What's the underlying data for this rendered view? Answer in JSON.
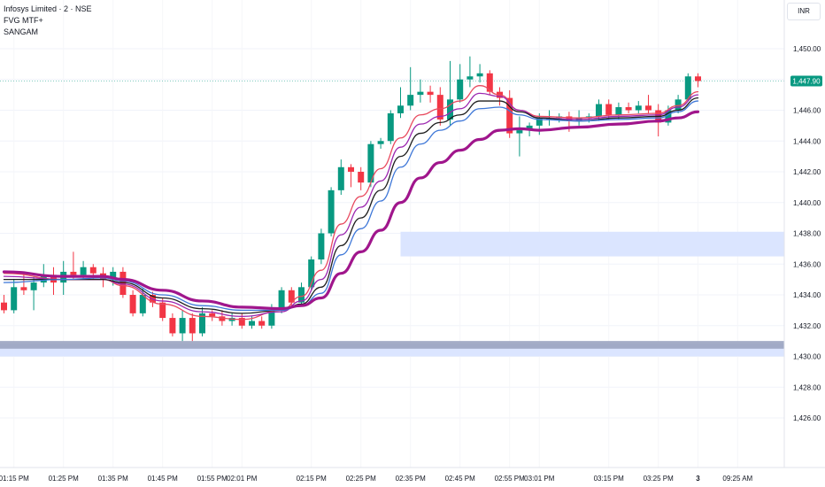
{
  "header": {
    "symbol": "Infosys Limited · 2 · NSE",
    "indicator_1": "FVG MTF+",
    "indicator_2": "SANGAM",
    "currency": "INR"
  },
  "colors": {
    "up": "#089981",
    "down": "#f23645",
    "ema_fast": "#e84a5f",
    "ema_2": "#9c27b0",
    "ema_3": "#1e1e1e",
    "ema_4": "#3f78d8",
    "ema_slow": "#a0168c",
    "fvg_zone": "#dbe5ff",
    "fvg_band": "#9aa3c0",
    "last_price_bg": "#089981"
  },
  "chart_data": {
    "type": "candlestick",
    "y_range": [
      1424.0,
      1452.0
    ],
    "y_ticks": [
      "1,450.00",
      "1,448.00",
      "1,446.00",
      "1,444.00",
      "1,442.00",
      "1,440.00",
      "1,438.00",
      "1,436.00",
      "1,434.00",
      "1,432.00",
      "1,430.00",
      "1,428.00",
      "1,426.00"
    ],
    "x_ticks": [
      {
        "label": "01:15 PM",
        "i": 1
      },
      {
        "label": "01:25 PM",
        "i": 6
      },
      {
        "label": "01:35 PM",
        "i": 11
      },
      {
        "label": "01:45 PM",
        "i": 16
      },
      {
        "label": "01:55 PM",
        "i": 21
      },
      {
        "label": "02:01 PM",
        "i": 24
      },
      {
        "label": "02:15 PM",
        "i": 31
      },
      {
        "label": "02:25 PM",
        "i": 36
      },
      {
        "label": "02:35 PM",
        "i": 41
      },
      {
        "label": "02:45 PM",
        "i": 46
      },
      {
        "label": "02:55 PM",
        "i": 51
      },
      {
        "label": "03:01 PM",
        "i": 54
      },
      {
        "label": "03:15 PM",
        "i": 61
      },
      {
        "label": "03:25 PM",
        "i": 66
      },
      {
        "label": "3",
        "i": 70
      },
      {
        "label": "09:25 AM",
        "i": 74
      }
    ],
    "last_price": "1,447.90",
    "last_price_value": 1447.9,
    "candles": [
      [
        1433.5,
        1433.0,
        1434.0,
        1432.8
      ],
      [
        1433.0,
        1434.5,
        1435.0,
        1432.8
      ],
      [
        1434.5,
        1434.3,
        1435.5,
        1434.0
      ],
      [
        1434.3,
        1434.8,
        1435.2,
        1433.0
      ],
      [
        1434.8,
        1435.3,
        1436.0,
        1434.5
      ],
      [
        1435.3,
        1434.8,
        1435.8,
        1434.0
      ],
      [
        1434.8,
        1435.5,
        1436.2,
        1434.0
      ],
      [
        1435.5,
        1435.3,
        1436.8,
        1435.0
      ],
      [
        1435.3,
        1435.8,
        1436.2,
        1435.0
      ],
      [
        1435.8,
        1435.4,
        1436.0,
        1435.0
      ],
      [
        1435.4,
        1435.0,
        1435.8,
        1434.5
      ],
      [
        1435.0,
        1435.5,
        1435.8,
        1434.6
      ],
      [
        1435.5,
        1434.0,
        1435.8,
        1433.8
      ],
      [
        1434.0,
        1432.8,
        1434.3,
        1432.6
      ],
      [
        1432.8,
        1434.0,
        1434.4,
        1432.6
      ],
      [
        1434.0,
        1433.5,
        1434.2,
        1433.2
      ],
      [
        1433.5,
        1432.5,
        1433.8,
        1432.3
      ],
      [
        1432.5,
        1431.5,
        1432.8,
        1431.3
      ],
      [
        1431.5,
        1432.5,
        1433.0,
        1431.0
      ],
      [
        1432.5,
        1431.5,
        1432.8,
        1431.0
      ],
      [
        1431.5,
        1432.8,
        1433.2,
        1431.3
      ],
      [
        1432.8,
        1432.6,
        1433.0,
        1432.3
      ],
      [
        1432.6,
        1432.3,
        1433.0,
        1432.0
      ],
      [
        1432.3,
        1432.5,
        1432.8,
        1432.0
      ],
      [
        1432.5,
        1432.0,
        1432.8,
        1431.8
      ],
      [
        1432.0,
        1432.3,
        1432.6,
        1431.8
      ],
      [
        1432.3,
        1432.0,
        1432.6,
        1431.8
      ],
      [
        1432.0,
        1433.0,
        1433.4,
        1431.8
      ],
      [
        1433.0,
        1434.3,
        1434.5,
        1432.8
      ],
      [
        1434.3,
        1433.5,
        1434.5,
        1433.2
      ],
      [
        1433.5,
        1434.5,
        1434.8,
        1433.3
      ],
      [
        1434.5,
        1436.3,
        1436.5,
        1434.3
      ],
      [
        1436.3,
        1438.0,
        1438.3,
        1436.0
      ],
      [
        1438.0,
        1440.8,
        1441.0,
        1437.8
      ],
      [
        1440.8,
        1442.3,
        1442.8,
        1440.5
      ],
      [
        1442.3,
        1442.0,
        1442.5,
        1441.0
      ],
      [
        1442.0,
        1441.3,
        1442.3,
        1440.8
      ],
      [
        1441.3,
        1443.8,
        1444.0,
        1441.0
      ],
      [
        1443.8,
        1444.0,
        1444.2,
        1443.5
      ],
      [
        1444.0,
        1445.8,
        1446.0,
        1443.8
      ],
      [
        1445.8,
        1446.3,
        1447.5,
        1445.5
      ],
      [
        1446.3,
        1447.0,
        1448.8,
        1446.0
      ],
      [
        1447.0,
        1447.2,
        1448.0,
        1446.5
      ],
      [
        1447.2,
        1447.0,
        1447.6,
        1446.5
      ],
      [
        1447.0,
        1445.4,
        1447.5,
        1445.0
      ],
      [
        1445.4,
        1446.7,
        1449.2,
        1445.0
      ],
      [
        1446.7,
        1448.0,
        1449.0,
        1446.5
      ],
      [
        1448.0,
        1448.2,
        1449.5,
        1447.5
      ],
      [
        1448.2,
        1448.4,
        1449.0,
        1447.8
      ],
      [
        1448.4,
        1447.2,
        1448.6,
        1447.0
      ],
      [
        1447.2,
        1446.8,
        1447.5,
        1446.3
      ],
      [
        1446.8,
        1444.5,
        1447.3,
        1444.2
      ],
      [
        1444.5,
        1444.7,
        1445.6,
        1443.0
      ],
      [
        1444.7,
        1445.0,
        1445.2,
        1444.3
      ],
      [
        1445.0,
        1445.5,
        1445.8,
        1444.4
      ],
      [
        1445.5,
        1445.5,
        1446.0,
        1445.0
      ],
      [
        1445.5,
        1445.6,
        1445.8,
        1445.2
      ],
      [
        1445.6,
        1445.3,
        1445.9,
        1444.6
      ],
      [
        1445.3,
        1445.5,
        1446.0,
        1445.0
      ],
      [
        1445.5,
        1445.6,
        1445.8,
        1445.2
      ],
      [
        1445.6,
        1446.4,
        1446.7,
        1445.3
      ],
      [
        1446.4,
        1445.7,
        1446.7,
        1445.4
      ],
      [
        1445.7,
        1446.2,
        1446.5,
        1445.4
      ],
      [
        1446.2,
        1446.0,
        1446.5,
        1445.8
      ],
      [
        1446.0,
        1446.3,
        1446.6,
        1445.8
      ],
      [
        1446.3,
        1446.0,
        1447.0,
        1445.8
      ],
      [
        1446.0,
        1445.2,
        1446.4,
        1444.3
      ],
      [
        1445.2,
        1446.0,
        1446.3,
        1445.0
      ],
      [
        1446.0,
        1446.7,
        1447.0,
        1445.8
      ],
      [
        1446.7,
        1448.2,
        1448.4,
        1446.6
      ],
      [
        1448.2,
        1447.9,
        1448.4,
        1447.5
      ]
    ],
    "ema_series": [
      {
        "key": "ema_fast",
        "width": 1.3,
        "values": [
          [
            0,
            1435.4
          ],
          [
            6,
            1435.0
          ],
          [
            10,
            1435.0
          ],
          [
            12,
            1434.6
          ],
          [
            16,
            1433.4
          ],
          [
            20,
            1432.6
          ],
          [
            24,
            1432.4
          ],
          [
            28,
            1433.0
          ],
          [
            30,
            1433.9
          ],
          [
            32,
            1435.6
          ],
          [
            34,
            1438.6
          ],
          [
            36,
            1440.4
          ],
          [
            38,
            1442.2
          ],
          [
            40,
            1444.2
          ],
          [
            42,
            1445.7
          ],
          [
            44,
            1446.1
          ],
          [
            46,
            1446.6
          ],
          [
            48,
            1447.6
          ],
          [
            50,
            1447.0
          ],
          [
            52,
            1446.0
          ],
          [
            54,
            1445.6
          ],
          [
            58,
            1445.5
          ],
          [
            62,
            1445.7
          ],
          [
            66,
            1445.8
          ],
          [
            68,
            1446.3
          ],
          [
            70,
            1447.2
          ]
        ]
      },
      {
        "key": "ema_2",
        "width": 1.3,
        "values": [
          [
            0,
            1435.2
          ],
          [
            6,
            1435.0
          ],
          [
            10,
            1435.0
          ],
          [
            12,
            1434.7
          ],
          [
            16,
            1433.6
          ],
          [
            20,
            1432.9
          ],
          [
            24,
            1432.6
          ],
          [
            28,
            1432.9
          ],
          [
            30,
            1433.6
          ],
          [
            32,
            1435.0
          ],
          [
            34,
            1437.9
          ],
          [
            36,
            1439.7
          ],
          [
            38,
            1441.4
          ],
          [
            40,
            1443.6
          ],
          [
            42,
            1445.1
          ],
          [
            44,
            1445.6
          ],
          [
            46,
            1446.1
          ],
          [
            48,
            1447.1
          ],
          [
            50,
            1446.9
          ],
          [
            52,
            1446.0
          ],
          [
            54,
            1445.5
          ],
          [
            58,
            1445.4
          ],
          [
            62,
            1445.6
          ],
          [
            66,
            1445.7
          ],
          [
            68,
            1446.2
          ],
          [
            70,
            1447.0
          ]
        ]
      },
      {
        "key": "ema_3",
        "width": 1.3,
        "values": [
          [
            0,
            1435.0
          ],
          [
            6,
            1435.0
          ],
          [
            10,
            1435.0
          ],
          [
            12,
            1434.8
          ],
          [
            16,
            1433.8
          ],
          [
            20,
            1433.1
          ],
          [
            24,
            1432.8
          ],
          [
            28,
            1433.0
          ],
          [
            30,
            1433.4
          ],
          [
            32,
            1434.5
          ],
          [
            34,
            1437.2
          ],
          [
            36,
            1439.0
          ],
          [
            38,
            1440.8
          ],
          [
            40,
            1443.0
          ],
          [
            42,
            1444.5
          ],
          [
            44,
            1445.2
          ],
          [
            46,
            1445.7
          ],
          [
            48,
            1446.6
          ],
          [
            50,
            1446.6
          ],
          [
            52,
            1445.9
          ],
          [
            54,
            1445.5
          ],
          [
            58,
            1445.3
          ],
          [
            62,
            1445.5
          ],
          [
            66,
            1445.6
          ],
          [
            68,
            1446.0
          ],
          [
            70,
            1446.8
          ]
        ]
      },
      {
        "key": "ema_4",
        "width": 1.3,
        "values": [
          [
            0,
            1434.8
          ],
          [
            6,
            1435.0
          ],
          [
            10,
            1435.1
          ],
          [
            12,
            1434.9
          ],
          [
            16,
            1434.0
          ],
          [
            20,
            1433.3
          ],
          [
            24,
            1433.0
          ],
          [
            28,
            1433.0
          ],
          [
            30,
            1433.3
          ],
          [
            32,
            1434.1
          ],
          [
            34,
            1436.6
          ],
          [
            36,
            1438.3
          ],
          [
            38,
            1440.1
          ],
          [
            40,
            1442.3
          ],
          [
            42,
            1443.8
          ],
          [
            44,
            1444.7
          ],
          [
            46,
            1445.3
          ],
          [
            48,
            1446.1
          ],
          [
            50,
            1446.2
          ],
          [
            52,
            1445.7
          ],
          [
            54,
            1445.4
          ],
          [
            58,
            1445.3
          ],
          [
            62,
            1445.4
          ],
          [
            66,
            1445.5
          ],
          [
            68,
            1445.9
          ],
          [
            70,
            1446.6
          ]
        ]
      },
      {
        "key": "ema_slow",
        "width": 3.2,
        "values": [
          [
            0,
            1435.5
          ],
          [
            6,
            1435.2
          ],
          [
            10,
            1435.2
          ],
          [
            12,
            1435.0
          ],
          [
            16,
            1434.3
          ],
          [
            20,
            1433.6
          ],
          [
            24,
            1433.2
          ],
          [
            28,
            1433.1
          ],
          [
            30,
            1433.3
          ],
          [
            32,
            1433.8
          ],
          [
            34,
            1435.4
          ],
          [
            36,
            1436.8
          ],
          [
            38,
            1438.2
          ],
          [
            40,
            1440.0
          ],
          [
            42,
            1441.6
          ],
          [
            44,
            1442.6
          ],
          [
            46,
            1443.4
          ],
          [
            48,
            1444.1
          ],
          [
            50,
            1444.7
          ],
          [
            52,
            1444.8
          ],
          [
            54,
            1444.7
          ],
          [
            58,
            1444.9
          ],
          [
            62,
            1445.1
          ],
          [
            66,
            1445.3
          ],
          [
            68,
            1445.5
          ],
          [
            70,
            1445.9
          ]
        ]
      }
    ],
    "fvg_zones": [
      {
        "i_start": 40,
        "y_low": 1436.5,
        "y_high": 1438.1,
        "kind": "zone"
      },
      {
        "i_start": 0,
        "y_low": 1430.0,
        "y_high": 1430.8,
        "kind": "zone"
      },
      {
        "i_start": 0,
        "y_low": 1430.5,
        "y_high": 1431.0,
        "kind": "band"
      }
    ]
  }
}
